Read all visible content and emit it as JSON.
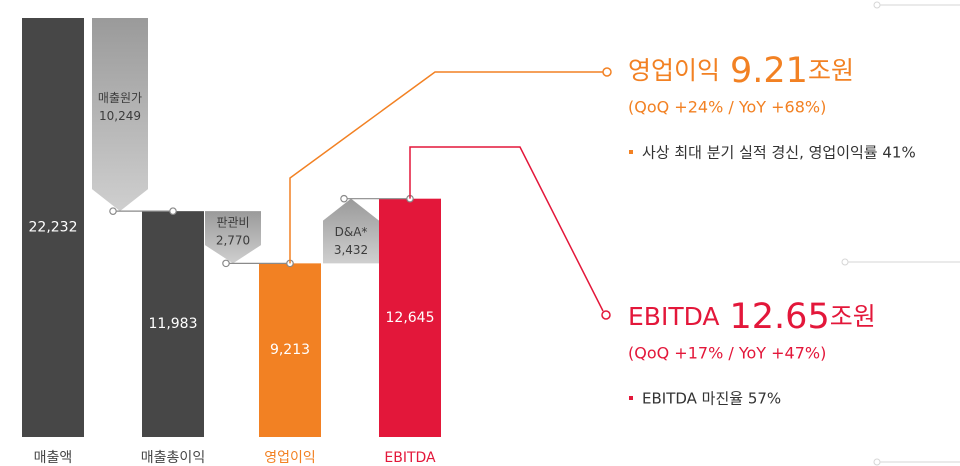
{
  "chart_data": {
    "type": "waterfall",
    "categories": [
      "매출액",
      "매출총이익",
      "영업이익",
      "EBITDA"
    ],
    "values": [
      22232,
      11983,
      9213,
      12645
    ],
    "value_labels": [
      "22,232",
      "11,983",
      "9,213",
      "12,645"
    ],
    "colors": [
      "#474747",
      "#474747",
      "#f28123",
      "#e3173a"
    ],
    "label_colors": [
      "#474747",
      "#474747",
      "#f28123",
      "#e3173a"
    ],
    "steps": {
      "names": [
        "매출원가",
        "판관비",
        "D&A*"
      ],
      "values": [
        10249,
        2770,
        3432
      ],
      "value_labels": [
        "10,249",
        "2,770",
        "3,432"
      ]
    },
    "callouts": [
      {
        "label": "영업이익",
        "amount": "9.21",
        "unit": "조원",
        "change": "(QoQ +24% / YoY +68%)",
        "note": "사상 최대 분기 실적 경신, 영업이익률 41%",
        "color": "#f28123"
      },
      {
        "label": "EBITDA",
        "amount": "12.65",
        "unit": "조원",
        "change": "(QoQ +17% / YoY +47%)",
        "note": "EBITDA 마진율 57%",
        "color": "#e3173a"
      }
    ]
  }
}
